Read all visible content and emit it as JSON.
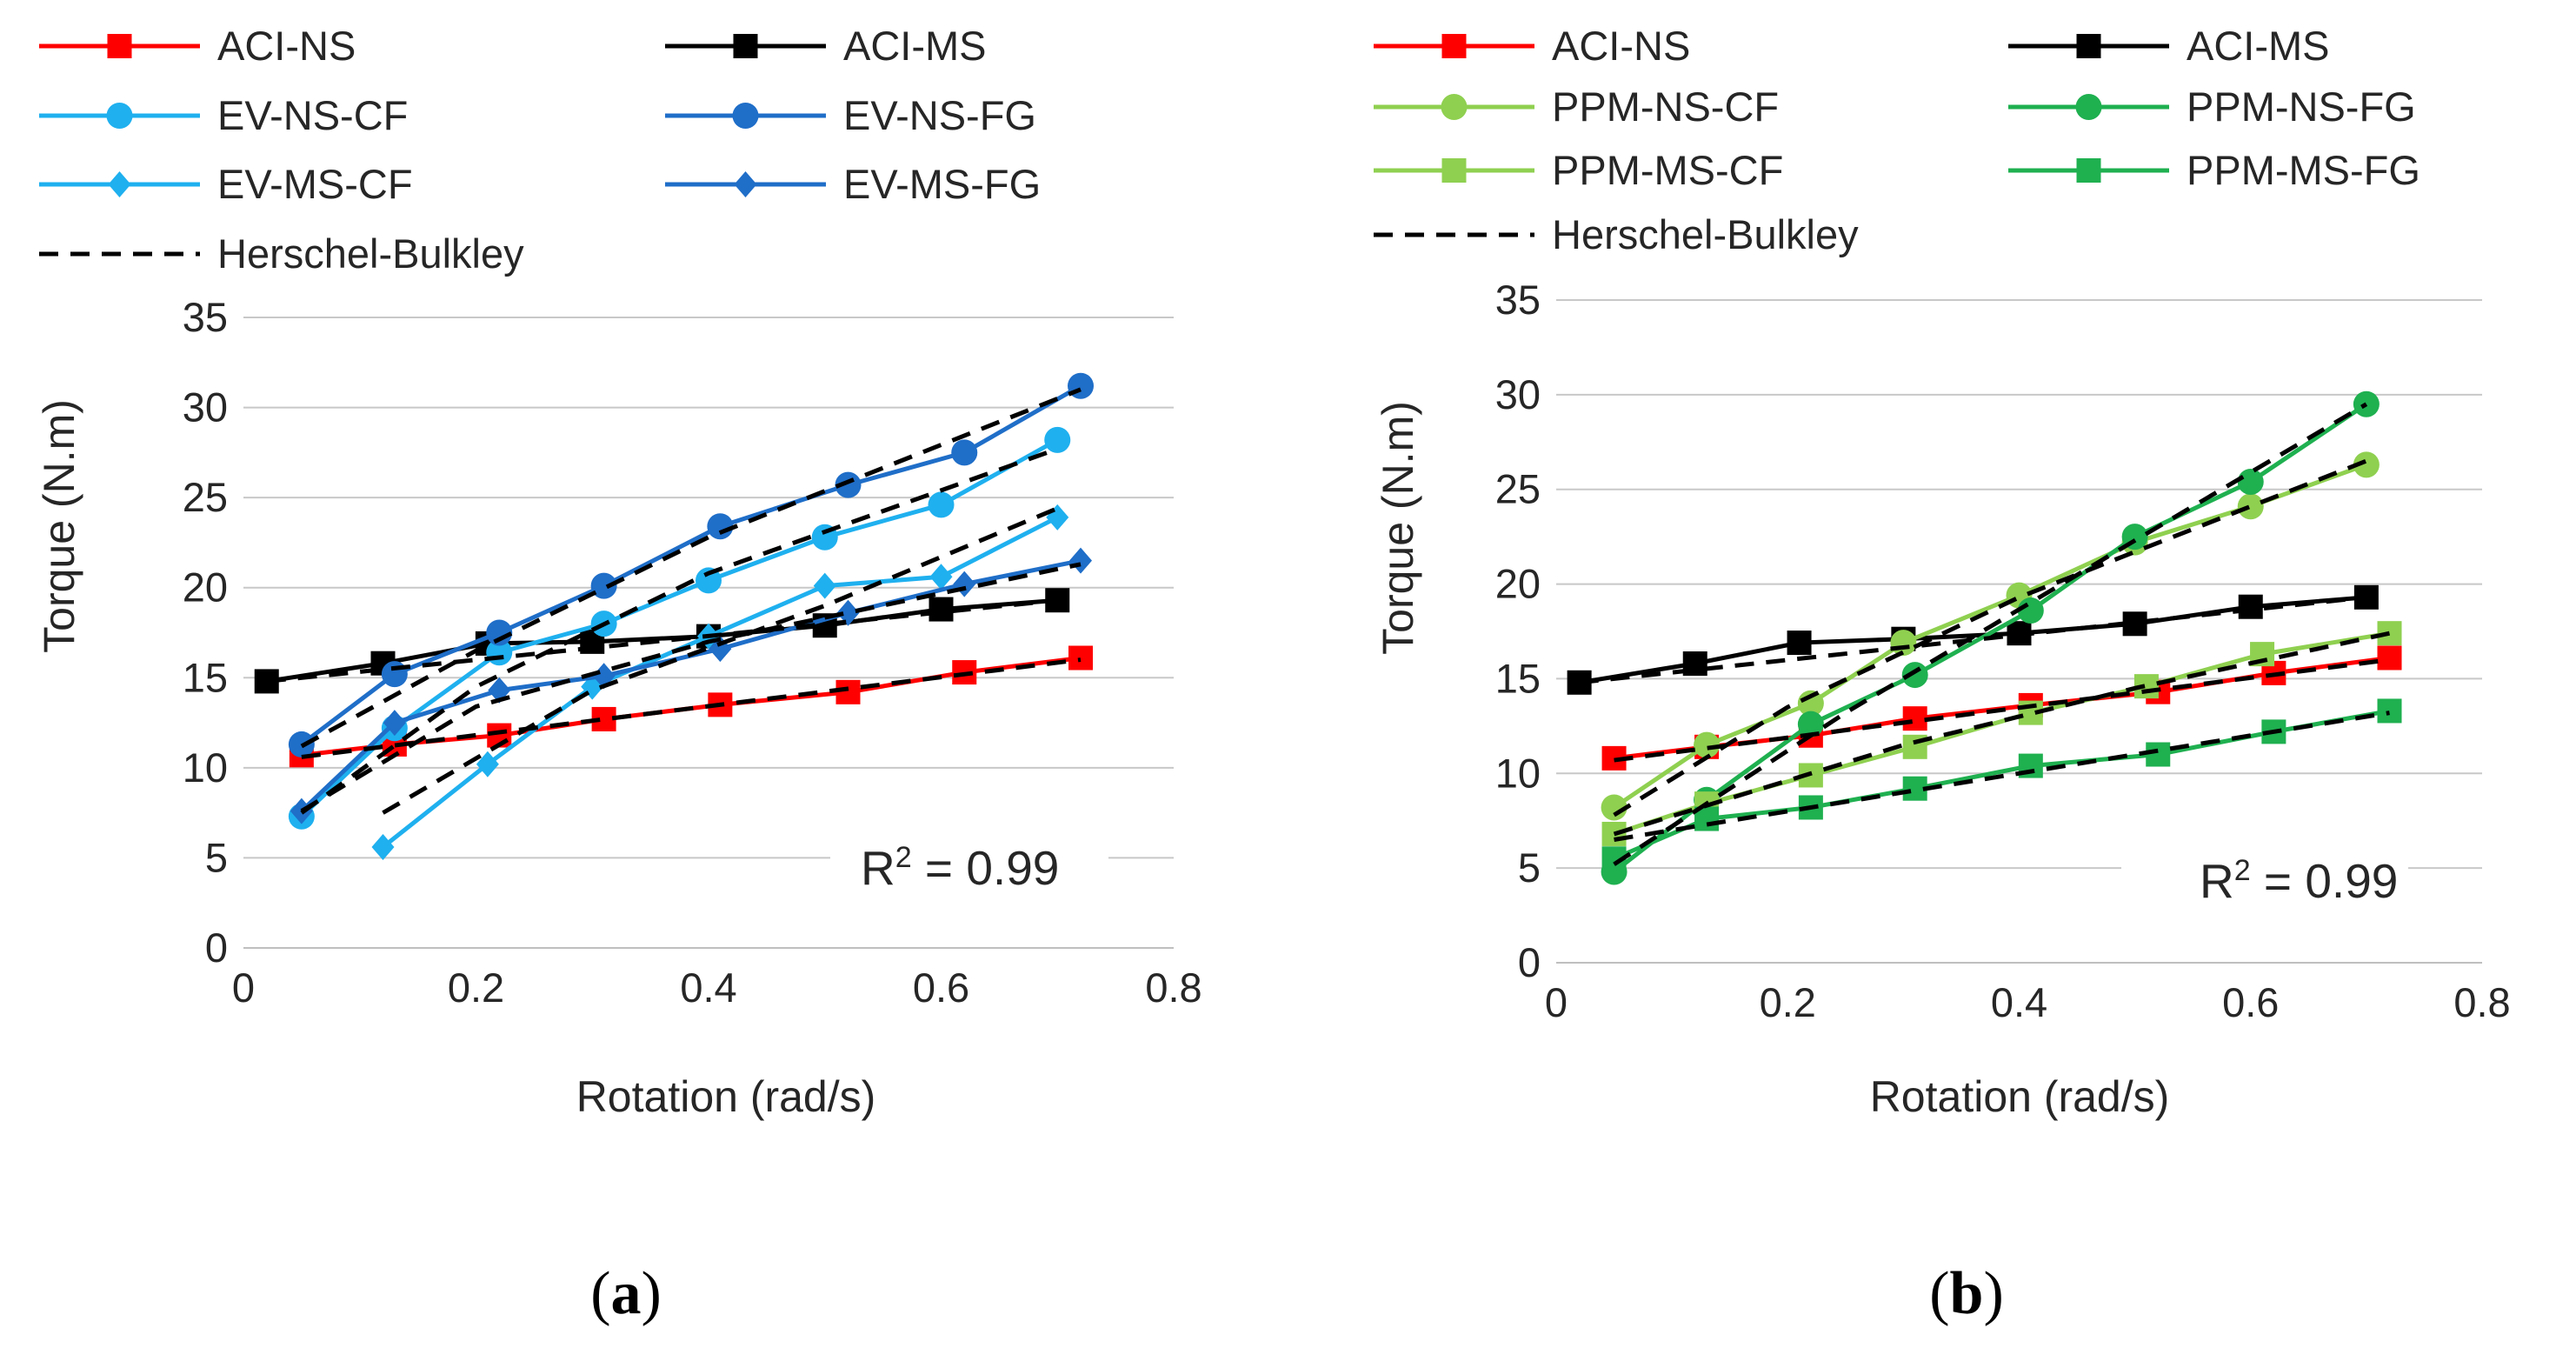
{
  "colors": {
    "ACI-NS": "#ff0000",
    "ACI-MS": "#000000",
    "EV-NS-CF": "#1fb0ef",
    "EV-NS-FG": "#1f6ec8",
    "EV-MS-CF": "#1fb0ef",
    "EV-MS-FG": "#1f6ec8",
    "PPM-NS-CF": "#8fd050",
    "PPM-NS-FG": "#1fb050",
    "PPM-MS-CF": "#8fd050",
    "PPM-MS-FG": "#1fb050",
    "Herschel-Bulkley": "#000000"
  },
  "chart_data": [
    {
      "type": "line",
      "panel": "a",
      "panel_label": "a",
      "xlabel": "Rotation (rad/s)",
      "ylabel": "Torque (N.m)",
      "xlim": [
        0,
        0.8
      ],
      "ylim": [
        0,
        35
      ],
      "xticks": [
        0,
        0.2,
        0.4,
        0.6,
        0.8
      ],
      "xtick_labels": [
        "0",
        "0.2",
        "0.4",
        "0.6",
        "0.8"
      ],
      "yticks": [
        0,
        5,
        10,
        15,
        20,
        25,
        30,
        35
      ],
      "ytick_labels": [
        "0",
        "5",
        "10",
        "15",
        "20",
        "25",
        "30",
        "35"
      ],
      "horizontal_gridlines": true,
      "legend_position": "top",
      "annotation": {
        "prefix": "R",
        "sup": "2",
        "suffix": " = 0.99"
      },
      "series": [
        {
          "name": "ACI-NS",
          "marker": "square",
          "x": [
            0.05,
            0.13,
            0.22,
            0.31,
            0.41,
            0.52,
            0.62,
            0.72
          ],
          "y": [
            10.7,
            11.3,
            11.8,
            12.7,
            13.5,
            14.2,
            15.3,
            16.1
          ]
        },
        {
          "name": "ACI-MS",
          "marker": "square",
          "x": [
            0.02,
            0.12,
            0.21,
            0.3,
            0.4,
            0.5,
            0.6,
            0.7
          ],
          "y": [
            14.8,
            15.8,
            16.9,
            17.0,
            17.3,
            17.9,
            18.8,
            19.3
          ]
        },
        {
          "name": "EV-NS-CF",
          "marker": "circle",
          "x": [
            0.05,
            0.13,
            0.22,
            0.31,
            0.4,
            0.5,
            0.6,
            0.7
          ],
          "y": [
            7.3,
            12.2,
            16.4,
            18.0,
            20.4,
            22.8,
            24.6,
            28.2
          ]
        },
        {
          "name": "EV-NS-FG",
          "marker": "circle",
          "x": [
            0.05,
            0.13,
            0.22,
            0.31,
            0.41,
            0.52,
            0.62,
            0.72
          ],
          "y": [
            11.3,
            15.2,
            17.5,
            20.1,
            23.4,
            25.7,
            27.5,
            31.2
          ]
        },
        {
          "name": "EV-MS-CF",
          "marker": "diamond",
          "x": [
            0.12,
            0.21,
            0.3,
            0.4,
            0.5,
            0.6,
            0.7
          ],
          "y": [
            5.6,
            10.2,
            14.5,
            17.3,
            20.1,
            20.6,
            23.9
          ]
        },
        {
          "name": "EV-MS-FG",
          "marker": "diamond",
          "x": [
            0.05,
            0.13,
            0.22,
            0.31,
            0.41,
            0.52,
            0.62,
            0.72
          ],
          "y": [
            7.6,
            12.5,
            14.3,
            15.1,
            16.6,
            18.6,
            20.2,
            21.5
          ]
        },
        {
          "name": "Herschel-Bulkley",
          "marker": "none",
          "dashed": true,
          "legend": true,
          "x": [
            0.05,
            0.72
          ],
          "y": [
            10.6,
            16.0
          ]
        },
        {
          "name": "Herschel-Bulkley",
          "marker": "none",
          "dashed": true,
          "legend": false,
          "x": [
            0.02,
            0.7
          ],
          "y": [
            14.8,
            19.3
          ]
        },
        {
          "name": "Herschel-Bulkley",
          "marker": "none",
          "dashed": true,
          "legend": false,
          "x": [
            0.05,
            0.2,
            0.4,
            0.7
          ],
          "y": [
            7.5,
            14.5,
            20.8,
            27.7
          ]
        },
        {
          "name": "Herschel-Bulkley",
          "marker": "none",
          "dashed": true,
          "legend": false,
          "x": [
            0.05,
            0.2,
            0.4,
            0.72
          ],
          "y": [
            11.2,
            16.5,
            22.8,
            31.0
          ]
        },
        {
          "name": "Herschel-Bulkley",
          "marker": "none",
          "dashed": true,
          "legend": false,
          "x": [
            0.12,
            0.3,
            0.5,
            0.7
          ],
          "y": [
            7.5,
            14.3,
            19.0,
            24.4
          ]
        },
        {
          "name": "Herschel-Bulkley",
          "marker": "none",
          "dashed": true,
          "legend": false,
          "x": [
            0.05,
            0.2,
            0.4,
            0.72
          ],
          "y": [
            7.6,
            13.4,
            17.0,
            21.3
          ]
        }
      ]
    },
    {
      "type": "line",
      "panel": "b",
      "panel_label": "b",
      "xlabel": "Rotation (rad/s)",
      "ylabel": "Torque (N.m)",
      "xlim": [
        0,
        0.8
      ],
      "ylim": [
        0,
        35
      ],
      "xticks": [
        0,
        0.2,
        0.4,
        0.6,
        0.8
      ],
      "xtick_labels": [
        "0",
        "0.2",
        "0.4",
        "0.6",
        "0.8"
      ],
      "yticks": [
        0,
        5,
        10,
        15,
        20,
        25,
        30,
        35
      ],
      "ytick_labels": [
        "0",
        "5",
        "10",
        "15",
        "20",
        "25",
        "30",
        "35"
      ],
      "horizontal_gridlines": true,
      "legend_position": "top",
      "annotation": {
        "prefix": "R",
        "sup": "2",
        "suffix": " = 0.99"
      },
      "series": [
        {
          "name": "ACI-NS",
          "marker": "square",
          "x": [
            0.05,
            0.13,
            0.22,
            0.31,
            0.41,
            0.52,
            0.62,
            0.72
          ],
          "y": [
            10.8,
            11.4,
            12.0,
            12.9,
            13.6,
            14.3,
            15.3,
            16.1
          ]
        },
        {
          "name": "ACI-MS",
          "marker": "square",
          "x": [
            0.02,
            0.12,
            0.21,
            0.3,
            0.4,
            0.5,
            0.6,
            0.7
          ],
          "y": [
            14.8,
            15.8,
            16.9,
            17.1,
            17.4,
            17.9,
            18.8,
            19.3
          ]
        },
        {
          "name": "PPM-NS-CF",
          "marker": "circle",
          "x": [
            0.05,
            0.13,
            0.22,
            0.3,
            0.4,
            0.5,
            0.6,
            0.7
          ],
          "y": [
            8.2,
            11.5,
            13.7,
            16.9,
            19.4,
            22.2,
            24.1,
            26.3
          ]
        },
        {
          "name": "PPM-NS-FG",
          "marker": "circle",
          "x": [
            0.05,
            0.13,
            0.22,
            0.31,
            0.41,
            0.5,
            0.6,
            0.7
          ],
          "y": [
            4.8,
            8.6,
            12.6,
            15.2,
            18.6,
            22.5,
            25.4,
            29.5
          ]
        },
        {
          "name": "PPM-MS-CF",
          "marker": "square",
          "x": [
            0.05,
            0.13,
            0.22,
            0.31,
            0.41,
            0.51,
            0.61,
            0.72
          ],
          "y": [
            6.8,
            8.4,
            9.9,
            11.4,
            13.2,
            14.6,
            16.3,
            17.4
          ]
        },
        {
          "name": "PPM-MS-FG",
          "marker": "square",
          "x": [
            0.05,
            0.13,
            0.22,
            0.31,
            0.41,
            0.52,
            0.62,
            0.72
          ],
          "y": [
            5.5,
            7.6,
            8.2,
            9.2,
            10.4,
            11.0,
            12.2,
            13.3
          ]
        },
        {
          "name": "Herschel-Bulkley",
          "marker": "none",
          "dashed": true,
          "legend": true,
          "x": [
            0.05,
            0.72
          ],
          "y": [
            10.7,
            16.0
          ]
        },
        {
          "name": "Herschel-Bulkley",
          "marker": "none",
          "dashed": true,
          "legend": false,
          "x": [
            0.02,
            0.7
          ],
          "y": [
            14.8,
            19.3
          ]
        },
        {
          "name": "Herschel-Bulkley",
          "marker": "none",
          "dashed": true,
          "legend": false,
          "x": [
            0.05,
            0.2,
            0.4,
            0.7
          ],
          "y": [
            7.8,
            13.5,
            19.3,
            26.5
          ]
        },
        {
          "name": "Herschel-Bulkley",
          "marker": "none",
          "dashed": true,
          "legend": false,
          "x": [
            0.05,
            0.25,
            0.5,
            0.7
          ],
          "y": [
            5.2,
            13.2,
            22.3,
            29.5
          ]
        },
        {
          "name": "Herschel-Bulkley",
          "marker": "none",
          "dashed": true,
          "legend": false,
          "x": [
            0.05,
            0.3,
            0.5,
            0.72
          ],
          "y": [
            6.8,
            11.5,
            14.5,
            17.4
          ]
        },
        {
          "name": "Herschel-Bulkley",
          "marker": "none",
          "dashed": true,
          "legend": false,
          "x": [
            0.05,
            0.3,
            0.5,
            0.72
          ],
          "y": [
            6.5,
            9.0,
            11.0,
            13.2
          ]
        }
      ]
    }
  ]
}
